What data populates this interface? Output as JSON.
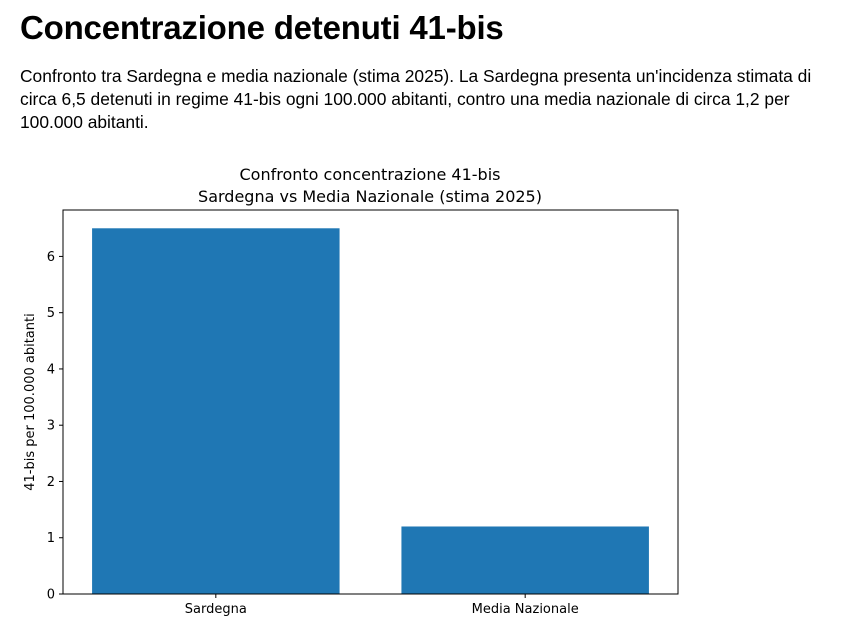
{
  "header": {
    "title": "Concentrazione detenuti 41-bis",
    "description": "Confronto tra Sardegna e media nazionale (stima 2025). La Sardegna presenta un'incidenza stimata di circa 6,5 detenuti in regime 41-bis ogni 100.000 abitanti, contro una media nazionale di circa 1,2 per 100.000 abitanti."
  },
  "chart_data": {
    "type": "bar",
    "title_lines": [
      "Confronto concentrazione 41-bis",
      "Sardegna vs Media Nazionale (stima 2025)"
    ],
    "categories": [
      "Sardegna",
      "Media Nazionale"
    ],
    "values": [
      6.5,
      1.2
    ],
    "xlabel": "",
    "ylabel": "41-bis per 100.000 abitanti",
    "ylim": [
      0,
      6.825
    ],
    "yticks": [
      0,
      1,
      2,
      3,
      4,
      5,
      6
    ],
    "grid": false,
    "bar_color": "#1f77b4"
  }
}
